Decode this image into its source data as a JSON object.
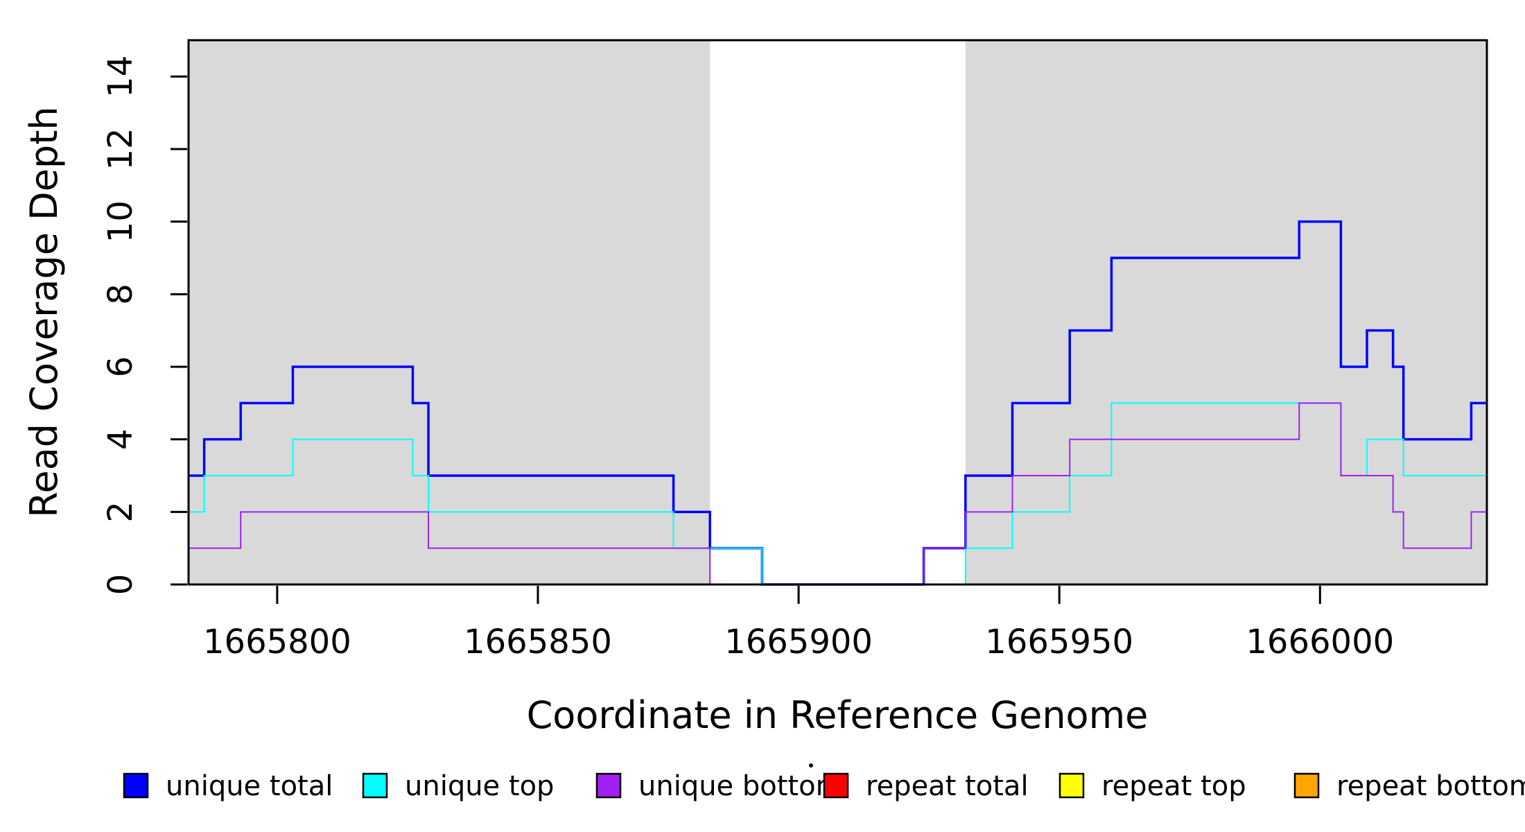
{
  "chart_data": {
    "type": "line",
    "subtype": "step-coverage",
    "title": "",
    "xlabel": "Coordinate in Reference Genome",
    "ylabel": "Read Coverage Depth",
    "xlim": [
      1665783,
      1666032
    ],
    "ylim": [
      0,
      15
    ],
    "x_ticks": [
      1665800,
      1665850,
      1665900,
      1665950,
      1666000
    ],
    "y_ticks": [
      0,
      2,
      4,
      6,
      8,
      10,
      12,
      14
    ],
    "grid": false,
    "background_color": "#ffffff",
    "shaded_region_color": "#d9d9d9",
    "shaded_regions": [
      {
        "from": 1665783,
        "to": 1665883
      },
      {
        "from": 1665932,
        "to": 1666032
      }
    ],
    "draw_order": [
      "repeat total",
      "repeat top",
      "repeat bottom",
      "unique total",
      "unique top",
      "unique bottom"
    ],
    "series": [
      {
        "name": "unique total",
        "color": "#0000ff",
        "width": 3.5,
        "steps": [
          [
            1665783,
            3
          ],
          [
            1665786,
            4
          ],
          [
            1665793,
            5
          ],
          [
            1665803,
            6
          ],
          [
            1665826,
            5
          ],
          [
            1665829,
            3
          ],
          [
            1665876,
            2
          ],
          [
            1665883,
            1
          ],
          [
            1665893,
            0
          ],
          [
            1665924,
            1
          ],
          [
            1665932,
            3
          ],
          [
            1665941,
            5
          ],
          [
            1665952,
            7
          ],
          [
            1665960,
            9
          ],
          [
            1665996,
            10
          ],
          [
            1666004,
            6
          ],
          [
            1666009,
            7
          ],
          [
            1666014,
            6
          ],
          [
            1666016,
            4
          ],
          [
            1666029,
            5
          ],
          [
            1666032,
            5
          ]
        ]
      },
      {
        "name": "unique top",
        "color": "#00ffff",
        "width": 2,
        "steps": [
          [
            1665783,
            2
          ],
          [
            1665786,
            3
          ],
          [
            1665803,
            4
          ],
          [
            1665826,
            3
          ],
          [
            1665829,
            2
          ],
          [
            1665876,
            1
          ],
          [
            1665893,
            0
          ],
          [
            1665932,
            1
          ],
          [
            1665941,
            2
          ],
          [
            1665952,
            3
          ],
          [
            1665960,
            5
          ],
          [
            1666004,
            3
          ],
          [
            1666009,
            4
          ],
          [
            1666016,
            3
          ],
          [
            1666032,
            3
          ]
        ]
      },
      {
        "name": "unique bottom",
        "color": "#a020f0",
        "width": 2,
        "steps": [
          [
            1665783,
            1
          ],
          [
            1665793,
            2
          ],
          [
            1665829,
            1
          ],
          [
            1665883,
            0
          ],
          [
            1665924,
            1
          ],
          [
            1665932,
            2
          ],
          [
            1665941,
            3
          ],
          [
            1665952,
            4
          ],
          [
            1665996,
            5
          ],
          [
            1666004,
            3
          ],
          [
            1666014,
            2
          ],
          [
            1666016,
            1
          ],
          [
            1666029,
            2
          ],
          [
            1666032,
            2
          ]
        ]
      },
      {
        "name": "repeat total",
        "color": "#ff0000",
        "width": 3,
        "steps": [
          [
            1665783,
            0
          ],
          [
            1666032,
            0
          ]
        ]
      },
      {
        "name": "repeat top",
        "color": "#ffff00",
        "width": 3,
        "steps": [
          [
            1665783,
            0
          ],
          [
            1666032,
            0
          ]
        ]
      },
      {
        "name": "repeat bottom",
        "color": "#ffa500",
        "width": 3,
        "steps": [
          [
            1665783,
            0
          ],
          [
            1666032,
            0
          ]
        ]
      }
    ],
    "legend": {
      "position": "bottom",
      "entries": [
        {
          "label": "unique total",
          "color": "#0000ff"
        },
        {
          "label": "unique top",
          "color": "#00ffff"
        },
        {
          "label": "unique bottom",
          "color": "#a020f0"
        },
        {
          "label": "repeat total",
          "color": "#ff0000"
        },
        {
          "label": "repeat top",
          "color": "#ffff00"
        },
        {
          "label": "repeat bottom",
          "color": "#ffa500"
        }
      ]
    }
  }
}
